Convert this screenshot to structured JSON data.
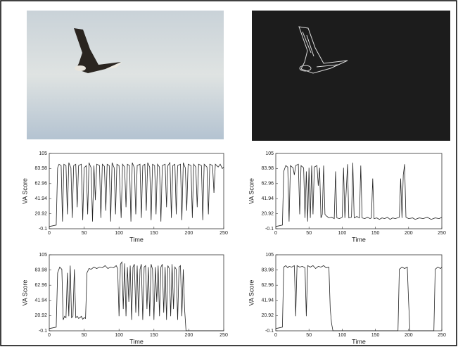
{
  "chart_data": [
    {
      "type": "line",
      "y_label": "VA Score",
      "x_label": "Time",
      "xlim": [
        0,
        250
      ],
      "ylim": [
        -0.1,
        105
      ],
      "xticks": [
        0,
        50,
        100,
        150,
        200,
        250
      ],
      "yticks": [
        -0.1,
        20.92,
        41.94,
        62.96,
        83.98,
        105
      ],
      "series": [
        {
          "color": "#222222",
          "x": [
            0,
            5,
            10,
            12,
            14,
            17,
            19,
            21,
            24,
            26,
            28,
            31,
            33,
            35,
            38,
            40,
            42,
            46,
            48,
            50,
            53,
            55,
            57,
            60,
            62,
            64,
            66,
            68,
            72,
            74,
            76,
            79,
            81,
            83,
            86,
            88,
            90,
            93,
            95,
            97,
            100,
            103,
            105,
            108,
            110,
            112,
            115,
            117,
            119,
            122,
            124,
            126,
            130,
            132,
            134,
            137,
            139,
            141,
            144,
            146,
            148,
            151,
            153,
            155,
            158,
            160,
            162,
            166,
            168,
            170,
            173,
            175,
            177,
            180,
            182,
            184,
            188,
            190,
            192,
            195,
            197,
            199,
            203,
            205,
            207,
            210,
            212,
            214,
            218,
            220,
            222,
            226,
            228,
            230,
            234,
            236,
            238,
            242,
            245,
            248,
            250
          ],
          "values": [
            3,
            4,
            5,
            85,
            90,
            88,
            10,
            90,
            88,
            20,
            92,
            85,
            15,
            88,
            90,
            30,
            88,
            90,
            12,
            85,
            88,
            20,
            92,
            85,
            10,
            88,
            40,
            90,
            88,
            15,
            90,
            87,
            25,
            90,
            88,
            10,
            92,
            85,
            20,
            90,
            88,
            15,
            90,
            86,
            30,
            90,
            88,
            10,
            92,
            85,
            20,
            88,
            90,
            15,
            88,
            90,
            25,
            92,
            86,
            12,
            90,
            88,
            20,
            90,
            86,
            10,
            88,
            90,
            30,
            88,
            92,
            15,
            88,
            90,
            20,
            88,
            90,
            12,
            92,
            85,
            25,
            90,
            88,
            15,
            90,
            86,
            30,
            90,
            88,
            12,
            90,
            86,
            20,
            90,
            88,
            50,
            90,
            86,
            90,
            84,
            86
          ]
        }
      ]
    },
    {
      "type": "line",
      "y_label": "VA Score",
      "x_label": "Time",
      "xlim": [
        0,
        250
      ],
      "ylim": [
        -0.1,
        105
      ],
      "xticks": [
        0,
        50,
        100,
        150,
        200,
        250
      ],
      "yticks": [
        -0.1,
        20.92,
        41.94,
        62.96,
        83.98,
        105
      ],
      "series": [
        {
          "color": "#222222",
          "x": [
            0,
            5,
            10,
            12,
            15,
            18,
            20,
            22,
            26,
            28,
            30,
            34,
            36,
            38,
            42,
            44,
            46,
            48,
            50,
            52,
            54,
            56,
            58,
            62,
            64,
            66,
            68,
            70,
            72,
            74,
            76,
            80,
            84,
            88,
            90,
            92,
            96,
            100,
            102,
            104,
            108,
            110,
            114,
            116,
            118,
            122,
            126,
            128,
            130,
            134,
            138,
            142,
            144,
            146,
            148,
            152,
            156,
            160,
            164,
            168,
            172,
            176,
            180,
            186,
            188,
            190,
            192,
            194,
            196,
            200,
            206,
            210,
            216,
            222,
            228,
            234,
            240,
            246,
            250
          ],
          "values": [
            3,
            4,
            5,
            80,
            88,
            86,
            10,
            88,
            85,
            75,
            88,
            90,
            20,
            88,
            85,
            15,
            80,
            10,
            85,
            15,
            88,
            20,
            86,
            88,
            60,
            85,
            15,
            20,
            88,
            20,
            18,
            15,
            16,
            14,
            80,
            15,
            14,
            16,
            85,
            15,
            90,
            15,
            16,
            92,
            15,
            17,
            15,
            88,
            15,
            14,
            16,
            14,
            15,
            70,
            14,
            15,
            13,
            15,
            14,
            16,
            13,
            15,
            14,
            16,
            70,
            15,
            75,
            90,
            16,
            14,
            15,
            13,
            15,
            14,
            16,
            13,
            15,
            14,
            16
          ]
        }
      ]
    },
    {
      "type": "line",
      "y_label": "VA Score",
      "x_label": "Time",
      "xlim": [
        0,
        250
      ],
      "ylim": [
        -0.1,
        105
      ],
      "xticks": [
        0,
        50,
        100,
        150,
        200,
        250
      ],
      "yticks": [
        -0.1,
        20.92,
        41.94,
        62.96,
        83.98,
        105
      ],
      "series": [
        {
          "color": "#222222",
          "x": [
            0,
            5,
            10,
            12,
            15,
            18,
            20,
            22,
            24,
            26,
            28,
            30,
            32,
            34,
            36,
            38,
            40,
            42,
            44,
            46,
            48,
            50,
            52,
            54,
            57,
            60,
            64,
            68,
            72,
            76,
            80,
            84,
            88,
            92,
            96,
            98,
            100,
            102,
            104,
            106,
            108,
            110,
            112,
            114,
            116,
            118,
            120,
            122,
            124,
            126,
            128,
            130,
            132,
            134,
            136,
            138,
            140,
            142,
            144,
            146,
            148,
            150,
            152,
            154,
            156,
            158,
            160,
            162,
            164,
            166,
            168,
            170,
            172,
            174,
            176,
            178,
            180,
            182,
            184,
            186,
            188,
            190,
            192,
            194,
            196,
            200,
            210,
            220,
            230,
            240,
            250
          ],
          "values": [
            3,
            4,
            5,
            80,
            88,
            85,
            15,
            20,
            18,
            80,
            20,
            90,
            18,
            20,
            85,
            18,
            20,
            17,
            18,
            20,
            16,
            18,
            17,
            80,
            86,
            85,
            88,
            86,
            88,
            87,
            90,
            86,
            88,
            87,
            90,
            86,
            20,
            92,
            95,
            30,
            93,
            20,
            88,
            40,
            90,
            15,
            88,
            92,
            25,
            90,
            20,
            85,
            92,
            15,
            88,
            90,
            30,
            88,
            20,
            92,
            85,
            15,
            88,
            40,
            90,
            20,
            88,
            92,
            25,
            88,
            15,
            90,
            86,
            20,
            92,
            30,
            88,
            85,
            15,
            88,
            90,
            20,
            85,
            30,
            0,
            0,
            0,
            0,
            0,
            0,
            0
          ]
        }
      ]
    },
    {
      "type": "line",
      "y_label": "VA Score",
      "x_label": "Time",
      "xlim": [
        0,
        250
      ],
      "ylim": [
        -0.1,
        105
      ],
      "xticks": [
        0,
        50,
        100,
        150,
        200,
        250
      ],
      "yticks": [
        -0.1,
        20.92,
        41.94,
        62.96,
        83.98,
        105
      ],
      "series": [
        {
          "color": "#222222",
          "x": [
            0,
            5,
            10,
            12,
            15,
            18,
            20,
            24,
            28,
            30,
            32,
            36,
            40,
            44,
            46,
            48,
            52,
            56,
            60,
            64,
            68,
            72,
            76,
            80,
            82,
            84,
            86,
            100,
            120,
            140,
            160,
            180,
            184,
            186,
            190,
            194,
            198,
            200,
            202,
            210,
            220,
            230,
            238,
            240,
            244,
            248,
            250
          ],
          "values": [
            3,
            4,
            5,
            88,
            90,
            87,
            89,
            88,
            90,
            20,
            90,
            88,
            89,
            87,
            20,
            90,
            88,
            90,
            86,
            89,
            88,
            90,
            87,
            88,
            30,
            10,
            0,
            0,
            0,
            0,
            0,
            0,
            0,
            85,
            88,
            86,
            88,
            40,
            0,
            0,
            0,
            0,
            0,
            85,
            88,
            86,
            88
          ]
        }
      ]
    }
  ]
}
